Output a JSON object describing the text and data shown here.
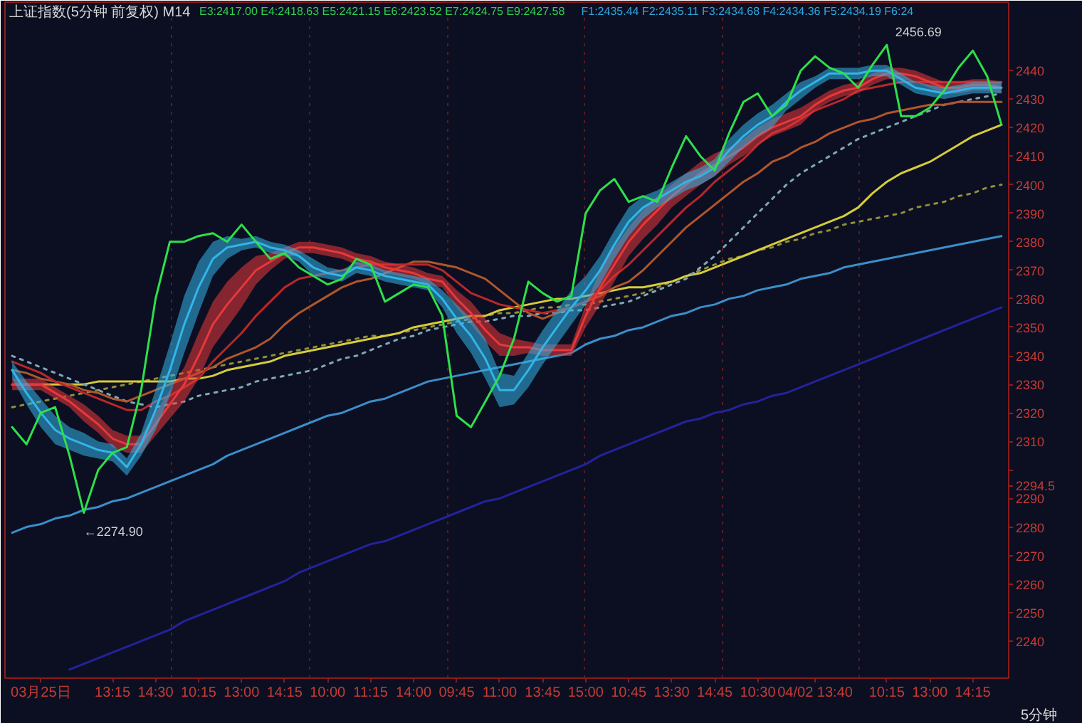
{
  "chart_data": {
    "type": "line",
    "title": "上证指数(5分钟 前复权) M14",
    "subtitle": "E3:2417.00 E4:2418.63 E5:2421.15 E6:2423.52 E7:2424.75 E9:2427.58",
    "xlabel": "5分钟",
    "annotations": [
      "F1:2435.44 F2:2435.11 F3:2434.68 F4:2434.36 F5:2434.19 F6:24",
      "2456.69",
      "←2274.90"
    ],
    "categories": [
      null,
      null,
      "03月25日",
      null,
      null,
      null,
      null,
      "13:15",
      null,
      null,
      "14:30",
      null,
      null,
      "10:15",
      null,
      null,
      "13:00",
      null,
      null,
      "14:15",
      null,
      null,
      "10:00",
      null,
      null,
      "11:15",
      null,
      null,
      "14:00",
      null,
      null,
      "09:45",
      null,
      null,
      "11:00",
      null,
      null,
      "13:45",
      null,
      null,
      "15:00",
      null,
      null,
      "10:45",
      null,
      null,
      "13:30",
      null,
      null,
      "14:45",
      null,
      null,
      "10:30",
      null,
      null,
      null,
      "04/02 13:40",
      null,
      null,
      null,
      null,
      "10:15",
      null,
      null,
      "13:00",
      null,
      null,
      "14:15",
      null,
      null
    ],
    "ylim": [
      2227,
      2464
    ],
    "yticks": [
      2240,
      2250,
      2260,
      2270,
      2280,
      2290,
      2294.5,
      {
        "value": 2300,
        "label": null
      },
      2310,
      2320,
      2330,
      2340,
      2350,
      2360,
      2370,
      2380,
      2390,
      2400,
      2410,
      2420,
      2430,
      2440
    ],
    "grid": "x",
    "line_style": "solid",
    "series": [
      {
        "color": "#23239a",
        "values": [
          null,
          null,
          null,
          null,
          2230,
          2232,
          2234,
          2236,
          2238,
          2240,
          2242,
          2244,
          2247,
          2249,
          2251,
          2253,
          2255,
          2257,
          2259,
          2261,
          2264,
          2266,
          2268,
          2270,
          2272,
          2274,
          2275,
          2277,
          2279,
          2281,
          2283,
          2285,
          2287,
          2289,
          2290,
          2292,
          2294,
          2296,
          2298,
          2300,
          2302,
          2305,
          2307,
          2309,
          2311,
          2313,
          2315,
          2317,
          2318,
          2320,
          2321,
          2323,
          2324,
          2326,
          2327,
          2329,
          2331,
          2333,
          2335,
          2337,
          2339,
          2341,
          2343,
          2345,
          2347,
          2349,
          2351,
          2353,
          2355,
          2357
        ]
      },
      {
        "color": "#3a8fc8",
        "values": [
          2278,
          2280,
          2281,
          2283,
          2284,
          2286,
          2287,
          2289,
          2290,
          2292,
          2294,
          2296,
          2298,
          2300,
          2302,
          2305,
          2307,
          2309,
          2311,
          2313,
          2315,
          2317,
          2319,
          2320,
          2322,
          2324,
          2325,
          2327,
          2329,
          2331,
          2332,
          2333,
          2334,
          2335,
          2336,
          2337,
          2338,
          2339,
          2340,
          2341,
          2344,
          2346,
          2347,
          2349,
          2350,
          2352,
          2354,
          2355,
          2357,
          2358,
          2360,
          2361,
          2363,
          2364,
          2365,
          2367,
          2368,
          2369,
          2371,
          2372,
          2373,
          2374,
          2375,
          2376,
          2377,
          2378,
          2379,
          2380,
          2381,
          2382
        ]
      },
      {
        "color": "#8f8f3a",
        "line_style": "dotted",
        "values": [
          2322,
          2323,
          2324,
          2325,
          2326,
          2327,
          2328,
          2329,
          2330,
          2331,
          2332,
          2333,
          2334,
          2335,
          2336,
          2337,
          2338,
          2339,
          2340,
          2341,
          2342,
          2343,
          2344,
          2345,
          2346,
          2347,
          2347,
          2348,
          2349,
          2350,
          2351,
          2352,
          2353,
          2354,
          2355,
          2355,
          2356,
          2357,
          2357,
          2358,
          2358,
          2359,
          2360,
          2361,
          2362,
          2364,
          2366,
          2368,
          2370,
          2372,
          2374,
          2375,
          2377,
          2378,
          2380,
          2381,
          2383,
          2384,
          2386,
          2387,
          2388,
          2389,
          2390,
          2392,
          2393,
          2394,
          2396,
          2397,
          2399,
          2400
        ]
      },
      {
        "color": "#d6cc3a",
        "values": [
          2330,
          2330,
          2330,
          2330,
          2330,
          2330,
          2331,
          2331,
          2331,
          2331,
          2331,
          2331,
          2332,
          2332,
          2333,
          2335,
          2336,
          2337,
          2338,
          2340,
          2341,
          2342,
          2343,
          2344,
          2345,
          2346,
          2347,
          2348,
          2350,
          2351,
          2352,
          2353,
          2354,
          2354,
          2356,
          2357,
          2358,
          2359,
          2360,
          2360,
          2361,
          2362,
          2363,
          2364,
          2364,
          2365,
          2366,
          2368,
          2369,
          2371,
          2373,
          2375,
          2377,
          2379,
          2381,
          2383,
          2385,
          2387,
          2389,
          2392,
          2397,
          2401,
          2404,
          2406,
          2408,
          2411,
          2414,
          2417,
          2419,
          2421
        ]
      },
      {
        "color": "#7fa8b2",
        "line_style": "dotted",
        "values": [
          2340,
          2338,
          2336,
          2334,
          2332,
          2330,
          2328,
          2326,
          2324,
          2323,
          2322,
          2323,
          2324,
          2326,
          2327,
          2328,
          2329,
          2331,
          2332,
          2333,
          2334,
          2335,
          2337,
          2339,
          2340,
          2342,
          2344,
          2346,
          2347,
          2349,
          2350,
          2351,
          2352,
          2352,
          2353,
          2354,
          2354,
          2355,
          2355,
          2356,
          2356,
          2357,
          2358,
          2359,
          2361,
          2363,
          2365,
          2367,
          2371,
          2375,
          2380,
          2385,
          2390,
          2395,
          2400,
          2404,
          2407,
          2410,
          2413,
          2416,
          2418,
          2420,
          2422,
          2424,
          2426,
          2428,
          2429,
          2430,
          2431,
          2432
        ]
      },
      {
        "color": "#b0562c",
        "values": [
          2335,
          2334,
          2332,
          2331,
          2330,
          2328,
          2327,
          2325,
          2324,
          2326,
          2328,
          2330,
          2332,
          2334,
          2336,
          2339,
          2341,
          2343,
          2346,
          2351,
          2355,
          2358,
          2361,
          2364,
          2366,
          2367,
          2369,
          2371,
          2373,
          2373,
          2372,
          2371,
          2369,
          2367,
          2363,
          2359,
          2355,
          2353,
          2355,
          2357,
          2359,
          2361,
          2364,
          2366,
          2370,
          2375,
          2380,
          2385,
          2389,
          2393,
          2397,
          2401,
          2404,
          2408,
          2410,
          2413,
          2415,
          2418,
          2420,
          2422,
          2423,
          2425,
          2426,
          2427,
          2428,
          2428,
          2429,
          2429,
          2429,
          2429
        ]
      },
      {
        "color": "#b8282a",
        "values": [
          2338,
          2336,
          2334,
          2331,
          2329,
          2327,
          2325,
          2323,
          2321,
          2321,
          2324,
          2326,
          2329,
          2332,
          2338,
          2343,
          2348,
          2354,
          2359,
          2364,
          2367,
          2368,
          2369,
          2370,
          2371,
          2372,
          2372,
          2372,
          2372,
          2372,
          2370,
          2366,
          2362,
          2360,
          2358,
          2357,
          2356,
          2355,
          2356,
          2357,
          2359,
          2363,
          2368,
          2372,
          2377,
          2382,
          2387,
          2392,
          2396,
          2401,
          2405,
          2409,
          2414,
          2418,
          2420,
          2423,
          2426,
          2428,
          2430,
          2433,
          2434,
          2435,
          2436,
          2436,
          2436,
          2436,
          2436,
          2436,
          2436,
          2436
        ]
      },
      {
        "color": "#e8383a",
        "values": [
          2330,
          2330,
          2330,
          2327,
          2324,
          2320,
          2316,
          2311,
          2309,
          2309,
          2316,
          2323,
          2330,
          2340,
          2351,
          2358,
          2364,
          2370,
          2373,
          2376,
          2378,
          2378,
          2377,
          2376,
          2374,
          2373,
          2371,
          2370,
          2369,
          2367,
          2366,
          2360,
          2355,
          2349,
          2344,
          2343,
          2343,
          2342,
          2342,
          2342,
          2354,
          2364,
          2372,
          2380,
          2386,
          2391,
          2396,
          2400,
          2404,
          2407,
          2410,
          2413,
          2417,
          2420,
          2422,
          2424,
          2428,
          2431,
          2433,
          2434,
          2437,
          2439,
          2439,
          2438,
          2436,
          2434,
          2434,
          2435,
          2435,
          2434
        ],
        "lower": [
          2328,
          2328,
          2328,
          2325,
          2322,
          2317,
          2313,
          2308,
          2306,
          2306,
          2312,
          2318,
          2324,
          2332,
          2343,
          2350,
          2357,
          2365,
          2370,
          2374,
          2376,
          2376,
          2375,
          2374,
          2372,
          2371,
          2369,
          2368,
          2367,
          2365,
          2364,
          2357,
          2351,
          2345,
          2340,
          2340,
          2341,
          2340,
          2340,
          2340,
          2350,
          2358,
          2366,
          2375,
          2381,
          2386,
          2392,
          2396,
          2400,
          2403,
          2407,
          2410,
          2414,
          2417,
          2419,
          2421,
          2426,
          2429,
          2431,
          2432,
          2435,
          2437,
          2437,
          2436,
          2434,
          2432,
          2432,
          2433,
          2433,
          2432
        ],
        "upper": [
          2332,
          2332,
          2332,
          2329,
          2326,
          2323,
          2319,
          2314,
          2312,
          2312,
          2320,
          2328,
          2336,
          2348,
          2359,
          2366,
          2371,
          2375,
          2376,
          2378,
          2380,
          2380,
          2379,
          2378,
          2376,
          2375,
          2373,
          2372,
          2371,
          2369,
          2368,
          2363,
          2359,
          2353,
          2348,
          2346,
          2345,
          2344,
          2344,
          2344,
          2358,
          2370,
          2378,
          2385,
          2391,
          2396,
          2400,
          2404,
          2408,
          2411,
          2413,
          2416,
          2420,
          2423,
          2425,
          2427,
          2430,
          2433,
          2435,
          2436,
          2439,
          2441,
          2441,
          2440,
          2438,
          2436,
          2436,
          2437,
          2437,
          2436
        ]
      },
      {
        "color": "#33b5e8",
        "values": [
          2335,
          2327,
          2320,
          2314,
          2311,
          2309,
          2307,
          2306,
          2301,
          2309,
          2321,
          2335,
          2351,
          2364,
          2374,
          2378,
          2379,
          2380,
          2378,
          2377,
          2375,
          2371,
          2369,
          2368,
          2371,
          2370,
          2368,
          2367,
          2366,
          2365,
          2360,
          2353,
          2347,
          2339,
          2328,
          2328,
          2335,
          2343,
          2350,
          2357,
          2363,
          2370,
          2379,
          2387,
          2392,
          2395,
          2398,
          2401,
          2403,
          2406,
          2412,
          2417,
          2421,
          2424,
          2429,
          2433,
          2436,
          2439,
          2439,
          2439,
          2440,
          2440,
          2437,
          2434,
          2433,
          2432,
          2433,
          2434,
          2434,
          2434
        ],
        "lower": [
          2332,
          2323,
          2315,
          2309,
          2307,
          2305,
          2304,
          2303,
          2298,
          2305,
          2314,
          2326,
          2341,
          2355,
          2368,
          2374,
          2377,
          2378,
          2376,
          2375,
          2373,
          2368,
          2367,
          2366,
          2369,
          2368,
          2366,
          2365,
          2364,
          2363,
          2357,
          2348,
          2341,
          2332,
          2322,
          2323,
          2329,
          2337,
          2344,
          2351,
          2358,
          2365,
          2374,
          2382,
          2388,
          2392,
          2395,
          2398,
          2400,
          2403,
          2408,
          2413,
          2417,
          2420,
          2426,
          2430,
          2434,
          2437,
          2437,
          2437,
          2438,
          2438,
          2435,
          2432,
          2431,
          2430,
          2431,
          2432,
          2432,
          2432
        ],
        "upper": [
          2338,
          2331,
          2325,
          2319,
          2315,
          2313,
          2310,
          2309,
          2304,
          2313,
          2328,
          2344,
          2361,
          2373,
          2380,
          2382,
          2381,
          2382,
          2380,
          2379,
          2377,
          2374,
          2371,
          2370,
          2373,
          2372,
          2370,
          2369,
          2368,
          2367,
          2363,
          2358,
          2353,
          2346,
          2334,
          2333,
          2341,
          2349,
          2356,
          2363,
          2368,
          2375,
          2384,
          2392,
          2396,
          2398,
          2401,
          2404,
          2406,
          2409,
          2416,
          2421,
          2425,
          2428,
          2432,
          2436,
          2438,
          2441,
          2441,
          2441,
          2442,
          2442,
          2439,
          2436,
          2435,
          2434,
          2435,
          2436,
          2436,
          2436
        ]
      },
      {
        "color": "#2ee04a",
        "values": [
          2315,
          2309,
          2320,
          2322,
          2305,
          2285,
          2300,
          2306,
          2308,
          2328,
          2360,
          2380,
          2380,
          2382,
          2383,
          2380,
          2386,
          2380,
          2374,
          2376,
          2371,
          2368,
          2365,
          2367,
          2374,
          2372,
          2359,
          2362,
          2365,
          2364,
          2354,
          2319,
          2315,
          2324,
          2333,
          2346,
          2366,
          2362,
          2359,
          2361,
          2390,
          2398,
          2402,
          2394,
          2396,
          2394,
          2406,
          2417,
          2410,
          2405,
          2418,
          2429,
          2432,
          2424,
          2428,
          2440,
          2445,
          2441,
          2439,
          2434,
          2442,
          2449,
          2424,
          2424,
          2427,
          2433,
          2441,
          2447,
          2438,
          2421
        ]
      }
    ]
  }
}
